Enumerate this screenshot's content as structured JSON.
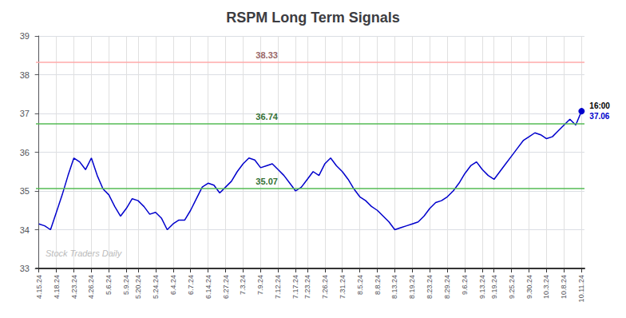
{
  "chart_data": {
    "type": "line",
    "title": "RSPM Long Term Signals",
    "categories": [
      "4.15.24",
      null,
      null,
      "4.18.24",
      null,
      null,
      "4.23.24",
      null,
      null,
      "4.26.24",
      null,
      null,
      "5.6.24",
      null,
      null,
      "5.9.24",
      null,
      "5.20.24",
      null,
      null,
      "5.24.24",
      null,
      null,
      "6.4.24",
      null,
      null,
      "6.7.24",
      null,
      null,
      "6.14.24",
      null,
      null,
      "6.27.24",
      null,
      null,
      "7.3.24",
      null,
      null,
      "7.9.24",
      null,
      null,
      "7.12.24",
      null,
      null,
      "7.17.24",
      null,
      "7.23.24",
      null,
      null,
      "7.26.24",
      null,
      null,
      "7.31.24",
      null,
      null,
      "8.5.24",
      null,
      null,
      "8.8.24",
      null,
      null,
      "8.13.24",
      null,
      null,
      "8.19.24",
      null,
      null,
      "8.23.24",
      null,
      null,
      "8.29.24",
      null,
      null,
      "9.6.24",
      null,
      null,
      "9.13.24",
      null,
      "9.19.24",
      null,
      null,
      "9.25.24",
      null,
      null,
      "9.30.24",
      null,
      null,
      "10.3.24",
      null,
      null,
      "10.8.24",
      null,
      null,
      "10.11.24"
    ],
    "values": [
      34.15,
      34.1,
      34.0,
      34.45,
      34.9,
      35.4,
      35.85,
      35.75,
      35.55,
      35.85,
      35.4,
      35.05,
      34.9,
      34.6,
      34.35,
      34.55,
      34.8,
      34.75,
      34.6,
      34.4,
      34.45,
      34.3,
      34.0,
      34.15,
      34.25,
      34.25,
      34.5,
      34.8,
      35.1,
      35.2,
      35.15,
      34.95,
      35.1,
      35.25,
      35.5,
      35.7,
      35.85,
      35.8,
      35.6,
      35.65,
      35.7,
      35.55,
      35.4,
      35.2,
      35.0,
      35.1,
      35.3,
      35.5,
      35.4,
      35.7,
      35.85,
      35.65,
      35.5,
      35.3,
      35.05,
      34.85,
      34.75,
      34.6,
      34.5,
      34.35,
      34.2,
      34.0,
      34.05,
      34.1,
      34.15,
      34.2,
      34.35,
      34.55,
      34.7,
      34.75,
      34.85,
      35.0,
      35.2,
      35.45,
      35.65,
      35.75,
      35.55,
      35.4,
      35.3,
      35.5,
      35.7,
      35.9,
      36.1,
      36.3,
      36.4,
      36.5,
      36.45,
      36.35,
      36.4,
      36.55,
      36.7,
      36.85,
      36.7,
      37.06
    ],
    "color": "#0000cc",
    "ylim": [
      33,
      39
    ],
    "yticks": [
      33,
      34,
      35,
      36,
      37,
      38,
      39
    ],
    "grid": true,
    "annotations": [
      {
        "type": "hline",
        "value": 38.33,
        "label": "38.33",
        "color": "#ffaaaa"
      },
      {
        "type": "hline",
        "value": 36.74,
        "label": "36.74",
        "color": "#55bb55"
      },
      {
        "type": "hline",
        "value": 35.07,
        "label": "35.07",
        "color": "#55bb55"
      }
    ],
    "last_point": {
      "value": 37.06,
      "labels": [
        "16:00",
        "37.06"
      ]
    },
    "watermark": "Stock Traders Daily"
  }
}
